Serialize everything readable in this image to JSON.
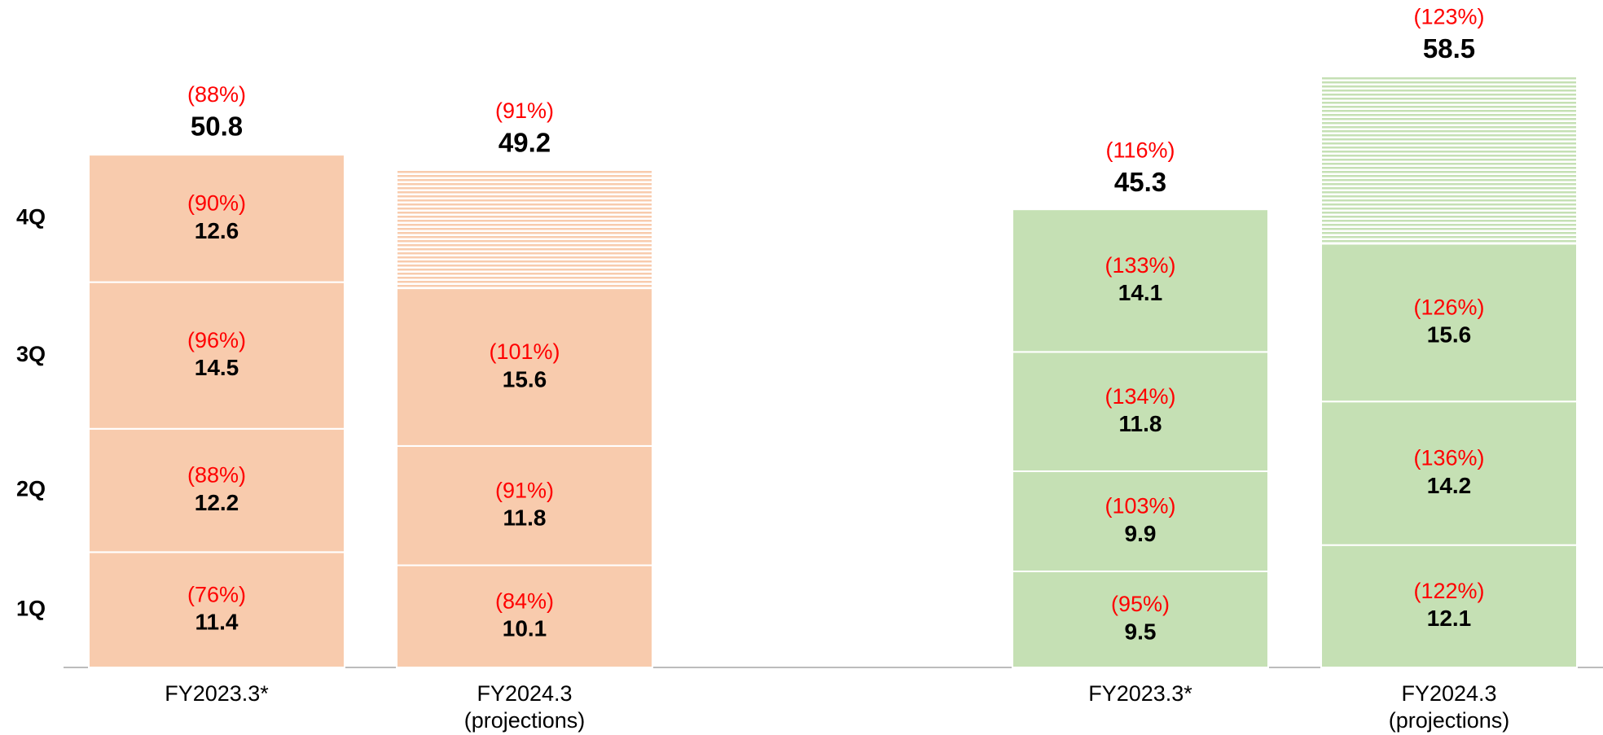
{
  "chart_data": {
    "type": "stacked_bar",
    "categories": [
      "FY2023.3*",
      "FY2024.3\n(projections)",
      "FY2023.3*",
      "FY2024.3\n(projections)"
    ],
    "bar_colors": [
      "#f8cbad",
      "#f8cbad",
      "#c5e0b4",
      "#c5e0b4"
    ],
    "ylim": [
      0,
      66
    ],
    "series": [
      {
        "name": "1Q",
        "values": [
          11.4,
          10.1,
          9.5,
          12.1
        ],
        "percent_labels": [
          "(76%)",
          "(84%)",
          "(95%)",
          "(122%)"
        ],
        "hatched": [
          false,
          false,
          false,
          false
        ]
      },
      {
        "name": "2Q",
        "values": [
          12.2,
          11.8,
          9.9,
          14.2
        ],
        "percent_labels": [
          "(88%)",
          "(91%)",
          "(103%)",
          "(136%)"
        ],
        "hatched": [
          false,
          false,
          false,
          false
        ]
      },
      {
        "name": "3Q",
        "values": [
          14.5,
          15.6,
          11.8,
          15.6
        ],
        "percent_labels": [
          "(96%)",
          "(101%)",
          "(134%)",
          "(126%)"
        ],
        "hatched": [
          false,
          false,
          false,
          false
        ]
      },
      {
        "name": "4Q",
        "values": [
          12.6,
          11.7,
          14.1,
          16.6
        ],
        "percent_labels": [
          "(90%)",
          null,
          "(133%)",
          null
        ],
        "hatched": [
          false,
          true,
          false,
          true
        ],
        "value_labels": [
          "12.6",
          null,
          "14.1",
          null
        ]
      }
    ],
    "totals": [
      50.8,
      49.2,
      45.3,
      58.5
    ],
    "total_percent_labels": [
      "(88%)",
      "(91%)",
      "(116%)",
      "(123%)"
    ]
  }
}
